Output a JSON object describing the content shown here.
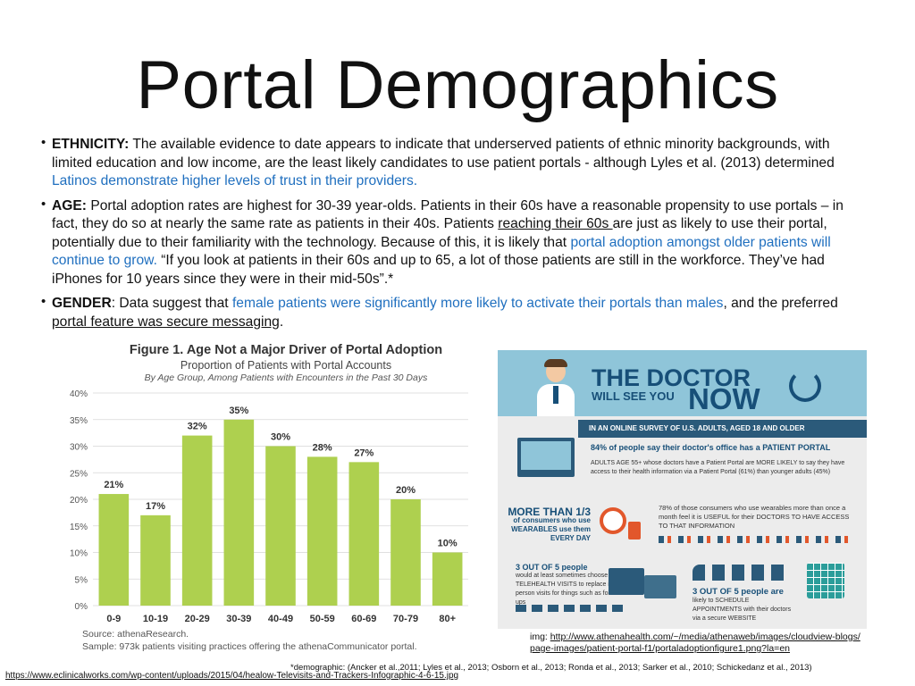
{
  "slide": {
    "title": "Portal Demographics"
  },
  "bullets": {
    "ethnicity": {
      "label": "ETHNICITY:",
      "text1": " The available evidence to date appears to indicate that underserved patients of ethnic minority backgrounds, with limited education and low income, are the least likely candidates to use patient portals  - although Lyles et al. (2013) determined ",
      "blue": "Latinos demonstrate higher levels of trust in their providers."
    },
    "age": {
      "label": "AGE:",
      "text1": "  Portal adoption rates are highest for 30-39 year-olds. Patients in their 60s have a reasonable propensity to use portals – in fact, they do so at nearly the same rate as patients in their 40s. Patients ",
      "underline": "reaching their 60s ",
      "text2": "are just as likely to use their portal, potentially due to their familiarity with the technology. Because of this, it is likely that ",
      "blue": "portal adoption amongst older patients will continue to grow.",
      "text3": " “If you look at patients in their 60s and up to 65, a lot of those patients are still in the workforce. They’ve had iPhones for 10 years since they were in their mid-50s”.*"
    },
    "gender": {
      "label": "GENDER",
      "text1": ":  Data suggest that ",
      "blue": "female patients were significantly more likely to activate their portals than males",
      "text2": ", and the preferred",
      "underline": " portal feature was secure messaging",
      "text3": "."
    }
  },
  "chart_data": {
    "type": "bar",
    "title": "Figure 1. Age Not a Major Driver of Portal Adoption",
    "subtitle": "Proportion of Patients with Portal Accounts",
    "subtitle2": "By Age Group, Among Patients with Encounters in the Past 30 Days",
    "categories": [
      "0-9",
      "10-19",
      "20-29",
      "30-39",
      "40-49",
      "50-59",
      "60-69",
      "70-79",
      "80+"
    ],
    "values": [
      21,
      17,
      32,
      35,
      30,
      28,
      27,
      20,
      10
    ],
    "value_labels": [
      "21%",
      "17%",
      "32%",
      "35%",
      "30%",
      "28%",
      "27%",
      "20%",
      "10%"
    ],
    "ylim": [
      0,
      40
    ],
    "yticks": [
      "0%",
      "5%",
      "10%",
      "15%",
      "20%",
      "25%",
      "30%",
      "35%",
      "40%"
    ],
    "bar_color": "#aed04f",
    "grid": true,
    "source": "Source: athenaResearch.",
    "sample": "Sample: 973k patients visiting practices offering the athenaCommunicator portal."
  },
  "infographic": {
    "title_main": "THE DOCTOR",
    "title_will": "WILL SEE YOU",
    "title_now": "NOW",
    "band": "IN AN ONLINE SURVEY OF U.S. ADULTS, AGED 18 AND OLDER",
    "stat1": "84% of people say their doctor's office has a PATIENT PORTAL",
    "stat2": "ADULTS AGE 55+ whose doctors have a Patient Portal are MORE LIKELY to say they have access to their health information via a Patient Portal (61%) than younger adults (45%)",
    "stat3_big": "MORE THAN 1/3",
    "stat3": "of consumers who use WEARABLES use them EVERY DAY",
    "stat4": "78% of those consumers who use wearables more than once a month feel it is USEFUL for their DOCTORS TO HAVE ACCESS TO THAT INFORMATION",
    "stat5_big": "3 OUT OF 5 people",
    "stat5": "would at least sometimes choose TELEHEALTH VISITS to replace in-person visits for things such as follow-ups",
    "stat6_big": "3 OUT OF 5 people are",
    "stat6": "likely to SCHEDULE APPOINTMENTS with their doctors via a secure WEBSITE",
    "colors": {
      "banner": "#8fc5d9",
      "navy": "#174f78",
      "band": "#2b5a7a",
      "accent": "#e2572b"
    }
  },
  "captions": {
    "img_prefix": "img: ",
    "img_url_line1": "http://www.athenahealth.com/~/media/athenaweb/images/cloudview-blogs/",
    "img_url_line2": "page-images/patient-portal-f1/portaladoptionfigure1.png?la=en",
    "demographic": "*demographic: (Ancker et al.,2011; Lyles et al., 2013; Osborn et al., 2013; Ronda et al., 2013; Sarker et al., 2010; Schickedanz et al., 2013)",
    "footer_url": "https://www.eclinicalworks.com/wp-content/uploads/2015/04/healow-Televisits-and-Trackers-Infographic-4-6-15.jpg"
  }
}
